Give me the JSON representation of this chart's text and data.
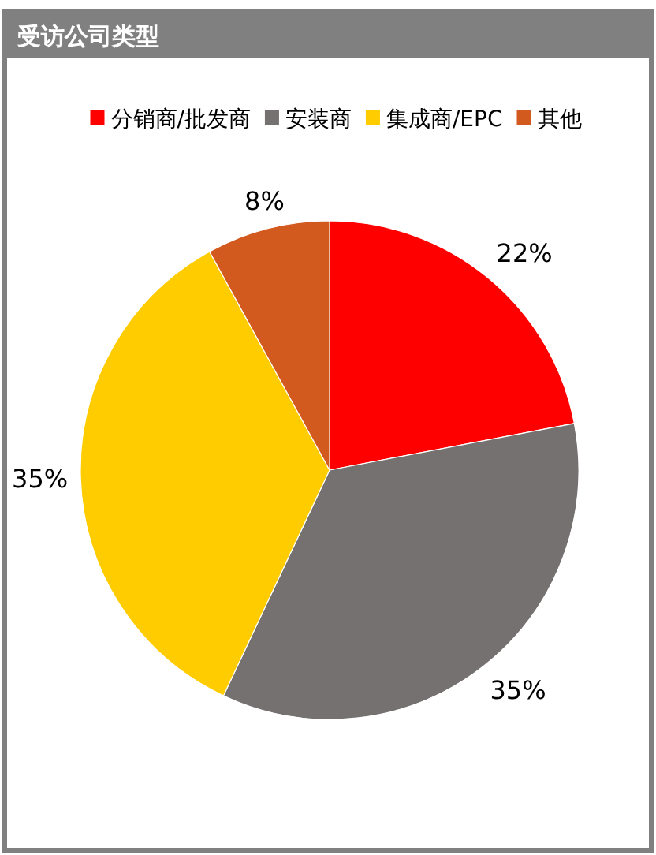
{
  "chart_data": {
    "type": "pie",
    "title": "受访公司类型",
    "categories": [
      "分销商/批发商",
      "安装商",
      "集成商/EPC",
      "其他"
    ],
    "values": [
      22,
      35,
      35,
      8
    ],
    "colors": [
      "#ff0000",
      "#767171",
      "#ffcc00",
      "#d35a1f"
    ],
    "value_labels": [
      "22%",
      "35%",
      "35%",
      "8%"
    ],
    "legend": "top"
  }
}
